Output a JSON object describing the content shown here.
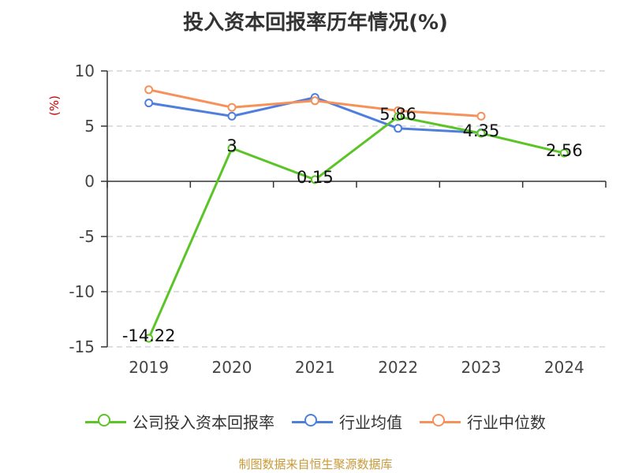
{
  "chart_data": {
    "type": "line",
    "title": "投入资本回报率历年情况(%)",
    "ylabel": "(%)",
    "xlabel": "",
    "categories": [
      "2019",
      "2020",
      "2021",
      "2022",
      "2023",
      "2024"
    ],
    "ylim": [
      -15,
      10
    ],
    "yticks": [
      10,
      5,
      0,
      -5,
      -10,
      -15
    ],
    "grid": "horizontal-dashed",
    "legend_position": "bottom",
    "series": [
      {
        "name": "公司投入资本回报率",
        "color": "#5bc427",
        "values": [
          -14.22,
          3,
          0.15,
          5.86,
          4.35,
          2.56
        ],
        "data_labels": [
          "-14.22",
          "3",
          "0.15",
          "5.86",
          "4.35",
          "2.56"
        ]
      },
      {
        "name": "行业均值",
        "color": "#4f7fdc",
        "values": [
          7.1,
          5.9,
          7.6,
          4.8,
          4.4,
          null
        ]
      },
      {
        "name": "行业中位数",
        "color": "#f7915a",
        "values": [
          8.3,
          6.7,
          7.3,
          6.4,
          5.9,
          null
        ]
      }
    ]
  },
  "source": "制图数据来自恒生聚源数据库"
}
